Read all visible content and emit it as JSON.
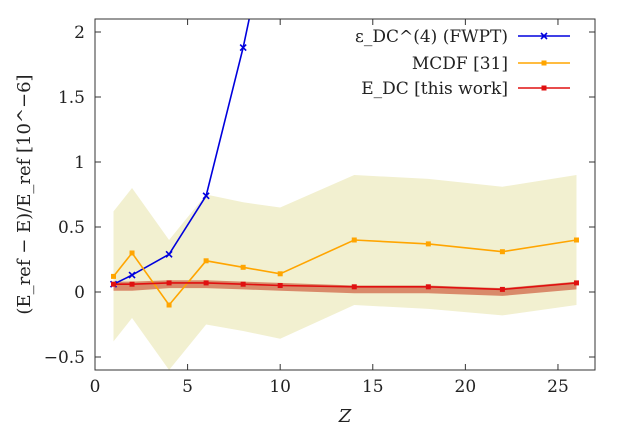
{
  "chart_data": {
    "type": "line",
    "xlabel": "Z",
    "ylabel": "(E_ref − E)/E_ref [10^−6]",
    "xlim": [
      0,
      27
    ],
    "ylim": [
      -0.6,
      2.1
    ],
    "xticks": [
      0,
      5,
      10,
      15,
      20,
      25
    ],
    "yticks": [
      -0.5,
      0,
      0.5,
      1,
      1.5,
      2
    ],
    "ytick_labels": [
      "−0.5",
      "0",
      "0.5",
      "1",
      "1.5",
      "2"
    ],
    "grid": false,
    "legend_position": "top-right",
    "series": [
      {
        "name": "ε_DC^(4) (FWPT)",
        "color": "#0000dd",
        "marker": "x",
        "x": [
          1,
          2,
          4,
          6,
          8,
          8.4
        ],
        "y": [
          0.06,
          0.13,
          0.29,
          0.74,
          1.88,
          2.15
        ]
      },
      {
        "name": "MCDF [31]",
        "color": "#ffa500",
        "marker": "square",
        "x": [
          1,
          2,
          4,
          6,
          8,
          10,
          14,
          18,
          22,
          26
        ],
        "y": [
          0.12,
          0.3,
          -0.1,
          0.24,
          0.19,
          0.14,
          0.4,
          0.37,
          0.31,
          0.4
        ]
      },
      {
        "name": "E_DC [this work]",
        "color": "#e01010",
        "marker": "square",
        "x": [
          1,
          2,
          4,
          6,
          8,
          10,
          14,
          18,
          22,
          26
        ],
        "y": [
          0.06,
          0.06,
          0.07,
          0.07,
          0.06,
          0.05,
          0.04,
          0.04,
          0.02,
          0.07
        ]
      }
    ],
    "bands": [
      {
        "series": "MCDF [31]",
        "color": "#f2f0d0",
        "x": [
          1,
          2,
          4,
          6,
          8,
          10,
          14,
          18,
          22,
          26
        ],
        "lower": [
          -0.38,
          -0.2,
          -0.6,
          -0.25,
          -0.3,
          -0.36,
          -0.1,
          -0.13,
          -0.18,
          -0.1
        ],
        "upper": [
          0.62,
          0.8,
          0.4,
          0.75,
          0.69,
          0.65,
          0.9,
          0.87,
          0.81,
          0.9
        ]
      },
      {
        "series": "E_DC [this work]",
        "color": "#d98a6a",
        "x": [
          1,
          2,
          4,
          6,
          8,
          10,
          14,
          18,
          22,
          26
        ],
        "lower": [
          0.01,
          0.01,
          0.03,
          0.03,
          0.02,
          0.01,
          -0.01,
          -0.01,
          -0.03,
          0.02
        ],
        "upper": [
          0.08,
          0.08,
          0.09,
          0.09,
          0.08,
          0.07,
          0.05,
          0.05,
          0.03,
          0.08
        ]
      }
    ]
  }
}
